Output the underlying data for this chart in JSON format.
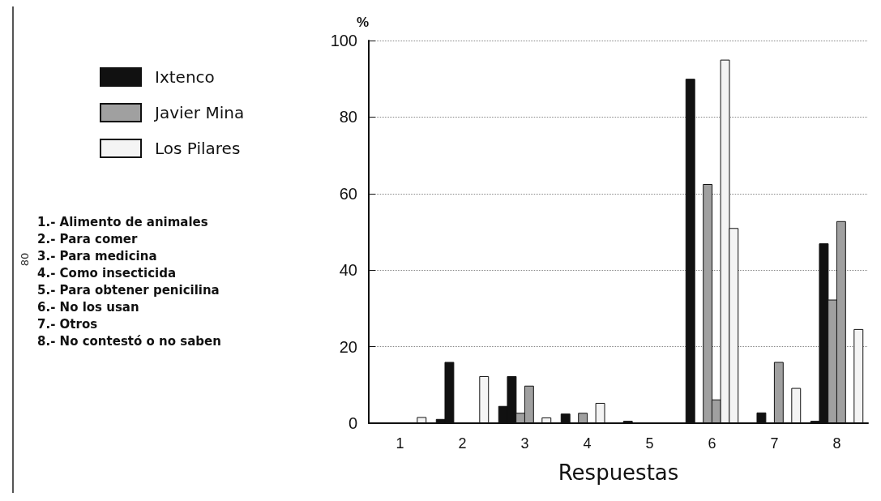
{
  "chart_data": {
    "type": "bar",
    "xlabel": "Respuestas",
    "ylabel": "%",
    "categories": [
      "1",
      "2",
      "3",
      "4",
      "5",
      "6",
      "7",
      "8"
    ],
    "series": [
      {
        "name": "Ixtenco",
        "color": "#111111",
        "values": [
          0,
          1.1,
          4.5,
          2.5,
          0.6,
          90,
          0,
          0.6
        ]
      },
      {
        "color": "#111111",
        "values": [
          0,
          16,
          12.3,
          0,
          0,
          0,
          2.8,
          47
        ]
      },
      {
        "name": "Javier Mina",
        "color": "#a0a0a0",
        "values": [
          0,
          0,
          2.7,
          2.7,
          0,
          62.5,
          0,
          32.3
        ]
      },
      {
        "color": "#a0a0a0",
        "values": [
          0,
          0,
          9.8,
          0,
          0,
          6.2,
          16,
          52.8
        ]
      },
      {
        "name": "Los Pilares",
        "color": "#f4f4f4",
        "values": [
          0,
          0,
          0,
          5.3,
          0,
          95,
          0,
          0
        ]
      },
      {
        "color": "#f4f4f4",
        "values": [
          1.6,
          12.3,
          1.5,
          0,
          0,
          51,
          9.2,
          24.6
        ]
      }
    ],
    "ylim": [
      0,
      100
    ],
    "yticks": [
      0,
      20,
      40,
      60,
      80,
      100
    ],
    "grid": "y",
    "legend": "top left",
    "annotations": [
      "1.- Alimento de animales",
      "2.- Para comer",
      "3.- Para medicina",
      "4.- Como insecticida",
      "5.- Para obtener penicilina",
      "6.- No los usan",
      "7.- Otros",
      "8.- No contestó o no saben",
      "80"
    ]
  }
}
